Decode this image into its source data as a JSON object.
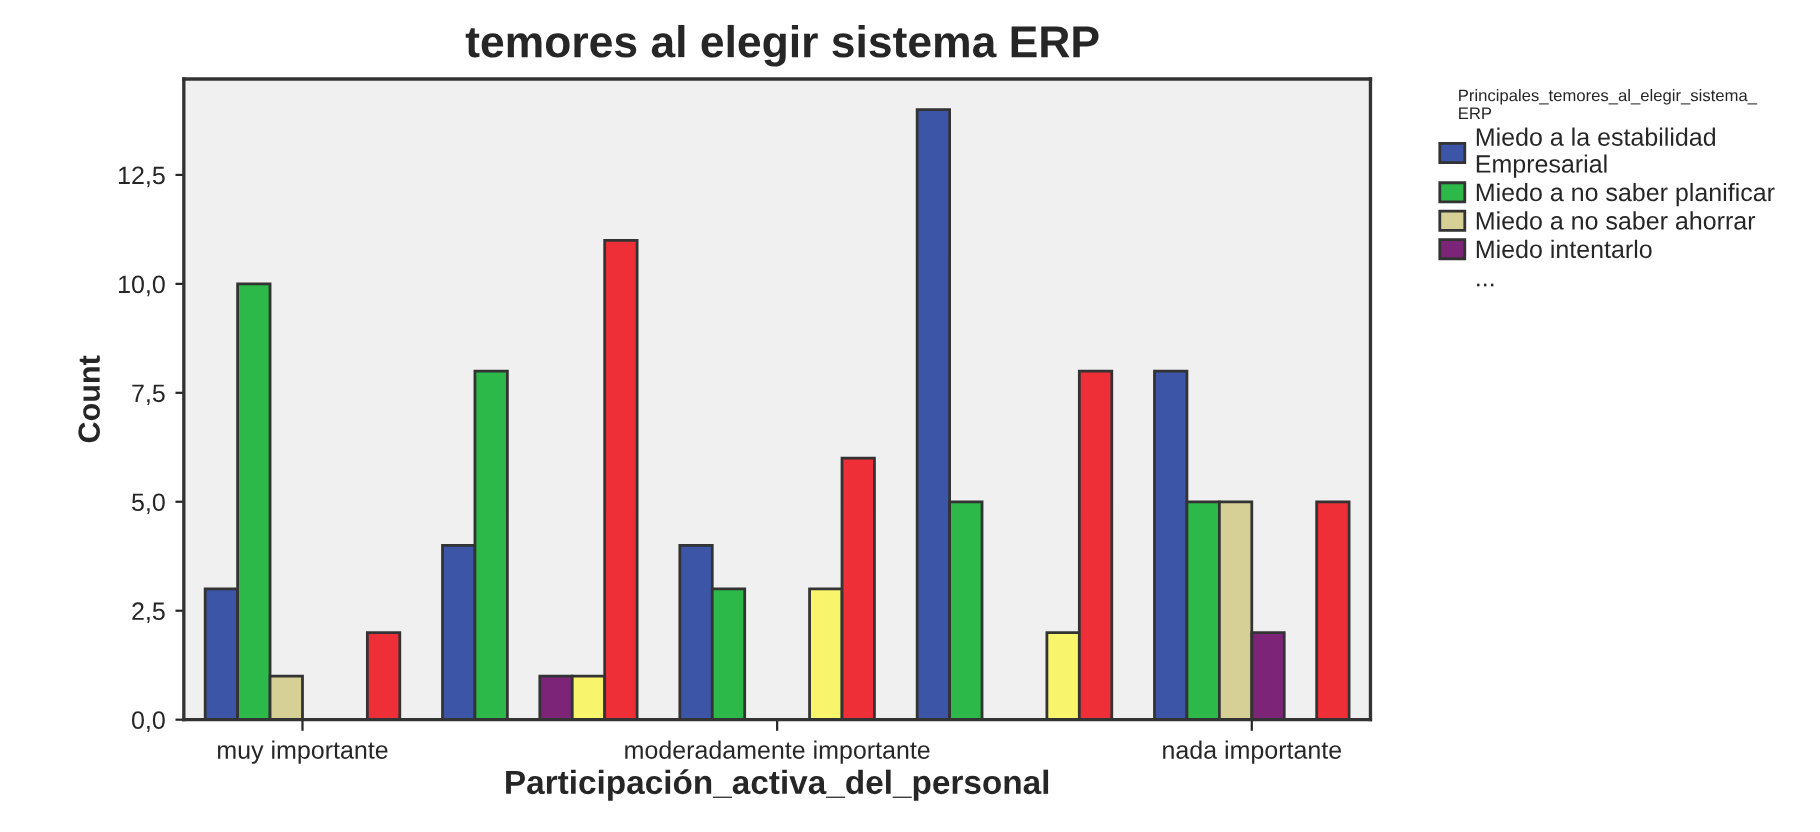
{
  "chart_data": {
    "type": "bar",
    "title": "temores al elegir sistema ERP",
    "xlabel": "Participación_activa_del_personal",
    "ylabel": "Count",
    "legend_title": "Principales_temores_al_elegir_sistema_\nERP",
    "categories": [
      "muy importante",
      null,
      "moderadamente importante",
      null,
      "nada importante"
    ],
    "series": [
      {
        "name": "Miedo a la estabilidad\nEmpresarial",
        "color": "#3c55a6",
        "values": [
          3,
          4,
          4,
          14,
          8
        ]
      },
      {
        "name": "Miedo a no saber planificar",
        "color": "#2db84a",
        "values": [
          10,
          8,
          3,
          5,
          5
        ]
      },
      {
        "name": "Miedo a no saber ahorrar",
        "color": "#d6d096",
        "values": [
          1,
          0,
          0,
          0,
          5
        ]
      },
      {
        "name": "Miedo intentarlo",
        "color": "#7b2478",
        "values": [
          0,
          1,
          0,
          0,
          2
        ]
      },
      {
        "color": "#f8f46c",
        "values": [
          0,
          1,
          3,
          2,
          0
        ]
      },
      {
        "color": "#ee2f38",
        "values": [
          2,
          11,
          6,
          8,
          5
        ]
      }
    ],
    "annotations": [
      "..."
    ],
    "ylim": [
      0,
      14.7
    ],
    "yticks": [
      {
        "value": 0,
        "label": "0,0"
      },
      {
        "value": 2.5,
        "label": "2,5"
      },
      {
        "value": 5,
        "label": "5,0"
      },
      {
        "value": 7.5,
        "label": "7,5"
      },
      {
        "value": 10,
        "label": "10,0"
      },
      {
        "value": 12.5,
        "label": "12,5"
      }
    ],
    "grid": false,
    "legend": "right"
  }
}
